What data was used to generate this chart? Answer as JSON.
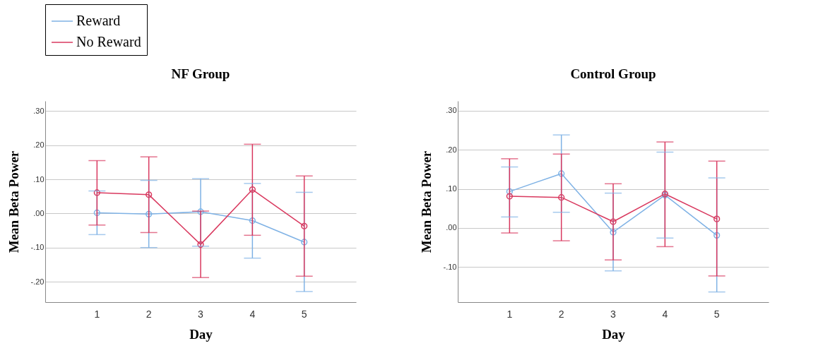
{
  "chart_data": [
    {
      "type": "line",
      "title": "NF Group",
      "xlabel": "Day",
      "ylabel": "Mean Beta Power",
      "categories": [
        "1",
        "2",
        "3",
        "4",
        "5"
      ],
      "series": [
        {
          "name": "Reward",
          "color": "#7fb2e5",
          "values": [
            0.002,
            -0.002,
            0.005,
            -0.021,
            -0.084
          ],
          "errors": [
            [
              -0.062,
              0.066
            ],
            [
              -0.1,
              0.097
            ],
            [
              -0.096,
              0.102
            ],
            [
              -0.131,
              0.088
            ],
            [
              -0.229,
              0.062
            ]
          ]
        },
        {
          "name": "No Reward",
          "color": "#d9395f",
          "values": [
            0.061,
            0.055,
            -0.091,
            0.07,
            -0.037
          ],
          "errors": [
            [
              -0.034,
              0.155
            ],
            [
              -0.056,
              0.166
            ],
            [
              -0.188,
              0.007
            ],
            [
              -0.064,
              0.203
            ],
            [
              -0.184,
              0.11
            ]
          ]
        }
      ],
      "ylim": [
        -0.26,
        0.33
      ],
      "yticks": [
        {
          "value": -0.2,
          "label": "-.20"
        },
        {
          "value": -0.1,
          "label": "-.10"
        },
        {
          "value": 0,
          "label": ".00"
        },
        {
          "value": 0.1,
          "label": ".10"
        },
        {
          "value": 0.2,
          "label": ".20"
        },
        {
          "value": 0.3,
          "label": ".30"
        }
      ],
      "grid": "y",
      "legend": "top",
      "marker": "circle",
      "line_style": "solid"
    },
    {
      "type": "line",
      "title": "Control Group",
      "xlabel": "Day",
      "ylabel": "Mean Beta Power",
      "categories": [
        "1",
        "2",
        "3",
        "4",
        "5"
      ],
      "series": [
        {
          "name": "Reward",
          "color": "#7fb2e5",
          "values": [
            0.093,
            0.139,
            -0.011,
            0.084,
            -0.019
          ],
          "errors": [
            [
              0.028,
              0.156
            ],
            [
              0.04,
              0.238
            ],
            [
              -0.11,
              0.089
            ],
            [
              -0.026,
              0.194
            ],
            [
              -0.164,
              0.128
            ]
          ]
        },
        {
          "name": "No Reward",
          "color": "#d9395f",
          "values": [
            0.081,
            0.078,
            0.016,
            0.087,
            0.023
          ],
          "errors": [
            [
              -0.013,
              0.177
            ],
            [
              -0.033,
              0.189
            ],
            [
              -0.082,
              0.113
            ],
            [
              -0.048,
              0.22
            ],
            [
              -0.123,
              0.171
            ]
          ]
        }
      ],
      "ylim": [
        -0.19,
        0.325
      ],
      "yticks": [
        {
          "value": -0.1,
          "label": "-.10"
        },
        {
          "value": 0,
          "label": ".00"
        },
        {
          "value": 0.1,
          "label": ".10"
        },
        {
          "value": 0.2,
          "label": ".20"
        },
        {
          "value": 0.3,
          "label": ".30"
        }
      ],
      "grid": "y",
      "legend": "top",
      "marker": "circle",
      "line_style": "solid"
    }
  ]
}
